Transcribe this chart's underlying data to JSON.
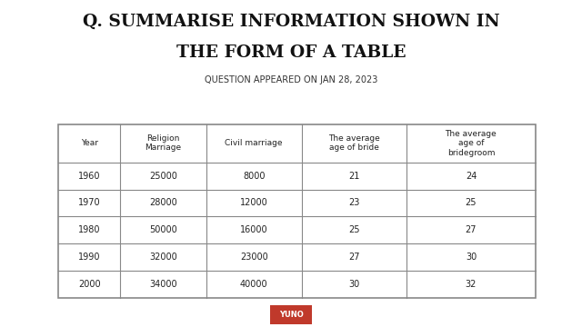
{
  "title_line1": "Q. SUMMARISE INFORMATION SHOWN IN",
  "title_line2": "THE FORM OF A TABLE",
  "subtitle": "QUESTION APPEARED ON JAN 28, 2023",
  "columns": [
    "Year",
    "Religion\nMarriage",
    "Civil marriage",
    "The average\nage of bride",
    "The average\nage of\nbridegroom"
  ],
  "rows": [
    [
      "1960",
      "25000",
      "8000",
      "21",
      "24"
    ],
    [
      "1970",
      "28000",
      "12000",
      "23",
      "25"
    ],
    [
      "1980",
      "50000",
      "16000",
      "25",
      "27"
    ],
    [
      "1990",
      "32000",
      "23000",
      "27",
      "30"
    ],
    [
      "2000",
      "34000",
      "40000",
      "30",
      "32"
    ]
  ],
  "bg_color": "#ffffff",
  "title_color": "#111111",
  "subtitle_color": "#333333",
  "table_text_color": "#222222",
  "table_border_color": "#888888",
  "logo_bg": "#c0392b",
  "logo_text": "YUNO",
  "logo_text_color": "#ffffff"
}
